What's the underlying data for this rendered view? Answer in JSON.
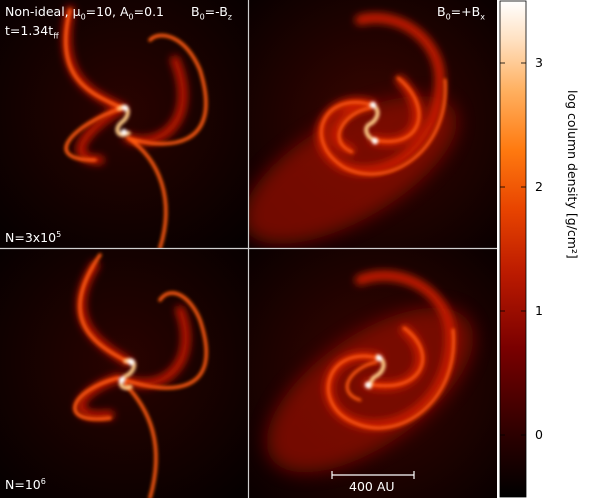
{
  "figure": {
    "panel_top_left": {
      "line1_pre": "Non-ideal, μ",
      "line1_sub1": "0",
      "line1_mid": "=10, A",
      "line1_sub2": "0",
      "line1_post": "=0.1",
      "field_pre": "B",
      "field_sub": "0",
      "field_post": "=-B",
      "field_sub2": "z",
      "time_pre": "t=1.34t",
      "time_sub": "ff",
      "n_pre": "N=3x10",
      "n_sup": "5"
    },
    "panel_top_right": {
      "field_pre": "B",
      "field_sub": "0",
      "field_post": "=+B",
      "field_sub2": "x"
    },
    "panel_bottom_left": {
      "n_pre": "N=10",
      "n_sup": "6"
    },
    "scale_bar": {
      "label": "400 AU"
    },
    "colorbar": {
      "label": "log column density [g/cm²]",
      "ticks": [
        "3",
        "2",
        "1",
        "0"
      ],
      "tick_values": [
        3,
        2,
        1,
        0
      ],
      "range": [
        -0.5,
        3.5
      ]
    },
    "colors": {
      "dark": "#050000",
      "mid": "#b01000",
      "bright": "#ff6a00",
      "hot": "#ffffff"
    }
  }
}
